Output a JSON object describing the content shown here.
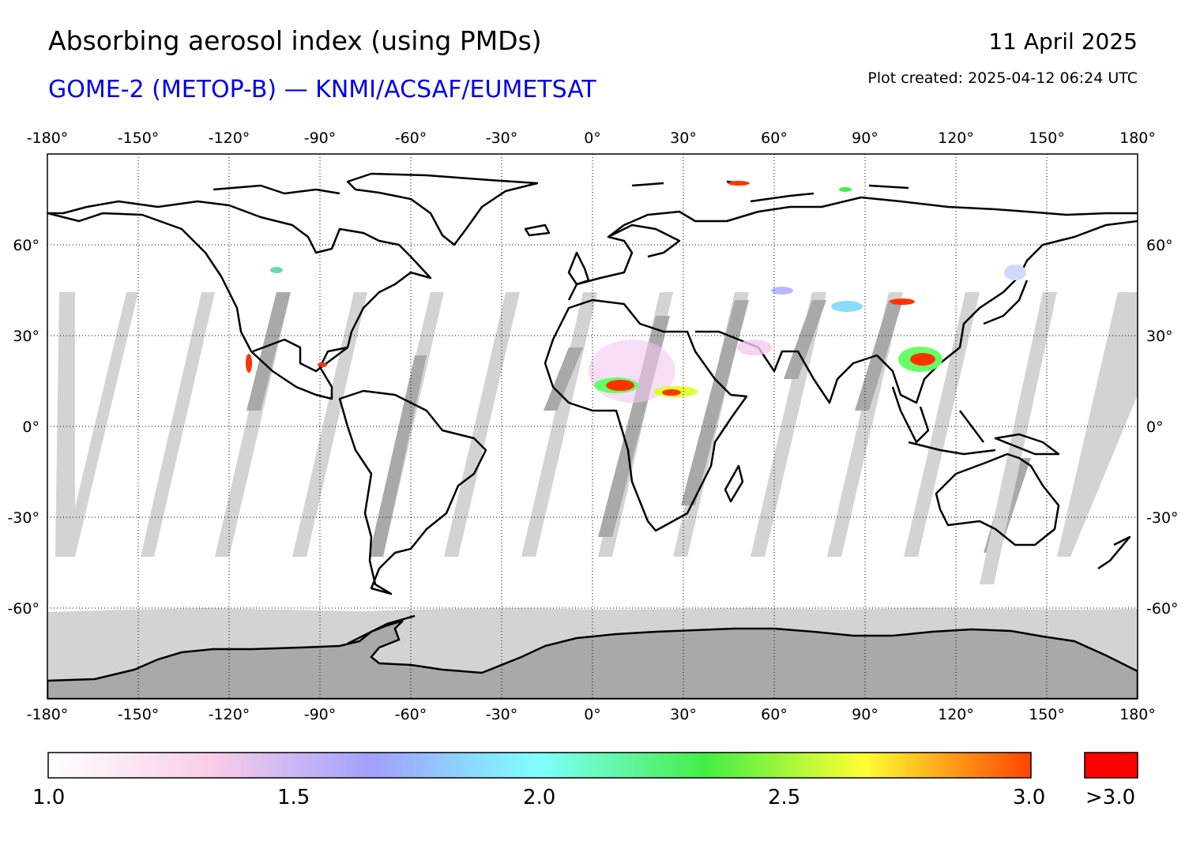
{
  "header": {
    "title": "Absorbing aerosol index (using PMDs)",
    "subtitle": "GOME-2 (METOP-B) — KNMI/ACSAF/EUMETSAT",
    "date": "11 April 2025",
    "created": "Plot created: 2025-04-12 06:24 UTC"
  },
  "map": {
    "projection": "equirectangular",
    "lon_range": [
      -180,
      180
    ],
    "lat_range": [
      -90,
      90
    ],
    "lon_ticks": [
      "-180°",
      "-150°",
      "-120°",
      "-90°",
      "-60°",
      "-30°",
      "0°",
      "30°",
      "60°",
      "90°",
      "120°",
      "150°",
      "180°"
    ],
    "lat_ticks": [
      "60°",
      "30°",
      "0°",
      "-30°",
      "-60°"
    ],
    "gridlines": "dotted",
    "colors": {
      "land_outline": "#000000",
      "no_data_light": "#d3d3d3",
      "no_data_dark": "#a9a9a9",
      "high_value": "#ff2a00"
    }
  },
  "colorbar": {
    "labels": [
      "1.0",
      "1.5",
      "2.0",
      "2.5",
      "3.0"
    ],
    "overflow_label": ">3.0",
    "range": [
      1.0,
      3.0
    ],
    "overflow_color": "#ff0000",
    "stops": [
      "#ffffff",
      "#f8cce8",
      "#a0a0ff",
      "#7fffff",
      "#44ee44",
      "#ffff33",
      "#ff4400"
    ]
  }
}
